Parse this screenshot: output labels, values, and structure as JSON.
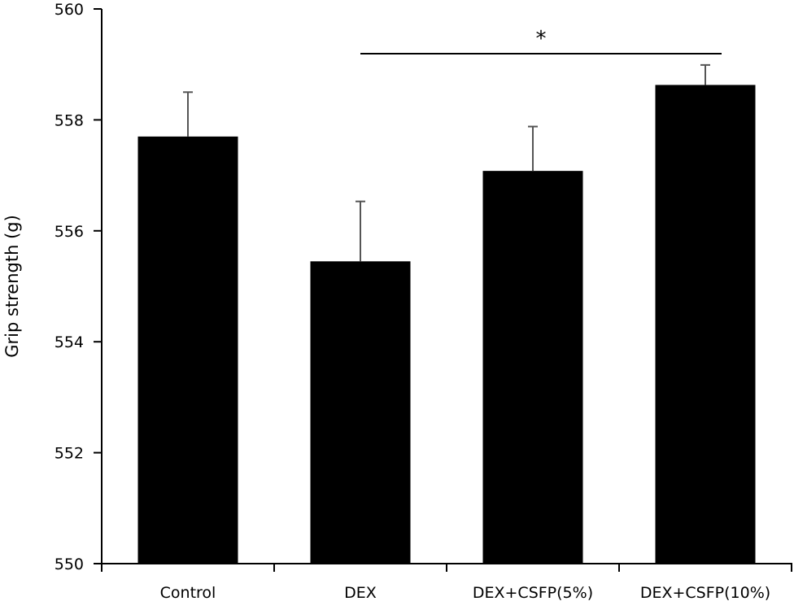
{
  "chart_data": {
    "type": "bar",
    "title": "",
    "xlabel": "",
    "ylabel": "Grip strength (g)",
    "ylim": [
      550,
      560
    ],
    "yticks": [
      "550",
      "552",
      "554",
      "556",
      "558",
      "560"
    ],
    "categories": [
      "Control",
      "DEX",
      "DEX+CSFP(5%)",
      "DEX+CSFP(10%)"
    ],
    "values": [
      557.7,
      555.45,
      557.08,
      558.63
    ],
    "error_upper": [
      0.8,
      1.08,
      0.8,
      0.36
    ],
    "bar_color": "#000000",
    "grid": false,
    "annotations": [
      {
        "text": "*",
        "from": "DEX",
        "to": "DEX+CSFP(10%)"
      }
    ]
  }
}
